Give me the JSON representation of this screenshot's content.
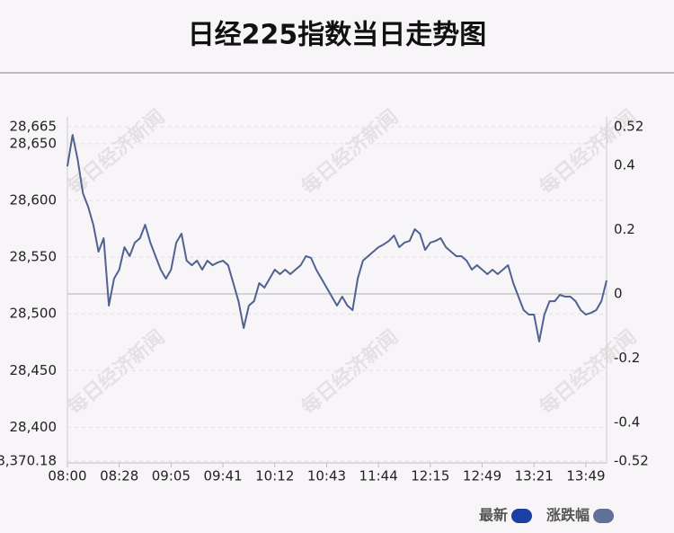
{
  "chart_data": {
    "type": "line",
    "title": "日经225指数当日走势图",
    "watermark": "每日经济新闻",
    "xlim": [
      0,
      104
    ],
    "xticks": [
      {
        "value": 0,
        "label": "08:00"
      },
      {
        "value": 10,
        "label": "08:28"
      },
      {
        "value": 20,
        "label": "09:05"
      },
      {
        "value": 30,
        "label": "09:41"
      },
      {
        "value": 40,
        "label": "10:12"
      },
      {
        "value": 50,
        "label": "10:43"
      },
      {
        "value": 60,
        "label": "11:44"
      },
      {
        "value": 70,
        "label": "12:15"
      },
      {
        "value": 80,
        "label": "12:49"
      },
      {
        "value": 90,
        "label": "13:21"
      },
      {
        "value": 100,
        "label": "13:49"
      }
    ],
    "ylim": [
      28370.18,
      28665
    ],
    "yticks": [
      {
        "value": 28665,
        "label": "28,665"
      },
      {
        "value": 28650,
        "label": "28,650"
      },
      {
        "value": 28600,
        "label": "28,600"
      },
      {
        "value": 28550,
        "label": "28,550"
      },
      {
        "value": 28500,
        "label": "28,500"
      },
      {
        "value": 28450,
        "label": "28,450"
      },
      {
        "value": 28400,
        "label": "28,400"
      },
      {
        "value": 28370.18,
        "label": "28,370.18"
      }
    ],
    "y2lim": [
      -0.52,
      0.52
    ],
    "y2ticks": [
      0.52,
      0.4,
      0.2,
      0,
      -0.2,
      -0.4,
      -0.52
    ],
    "grid": true,
    "series": [
      {
        "name": "最新",
        "color": "#4f6290",
        "values": [
          28630.1,
          28657.8,
          28635.7,
          28606.3,
          28594.5,
          28578.6,
          28554.8,
          28566.7,
          28507.3,
          28531.1,
          28539.0,
          28558.8,
          28550.9,
          28562.8,
          28566.7,
          28578.6,
          28562.8,
          28550.9,
          28539.0,
          28531.1,
          28539.0,
          28562.8,
          28570.7,
          28546.9,
          28542.9,
          28546.9,
          28539.0,
          28546.9,
          28542.9,
          28545.3,
          28546.9,
          28542.9,
          28527.1,
          28511.2,
          28487.5,
          28507.3,
          28511.2,
          28527.1,
          28523.1,
          28531.1,
          28539.0,
          28535.0,
          28539.0,
          28535.0,
          28539.0,
          28542.9,
          28550.9,
          28549.3,
          28539.0,
          28531.1,
          28523.1,
          28515.2,
          28507.3,
          28515.2,
          28507.3,
          28503.3,
          28531.1,
          28546.9,
          28550.9,
          28554.8,
          28558.8,
          28561.2,
          28564.3,
          28569.1,
          28558.8,
          28562.8,
          28564.3,
          28574.6,
          28570.7,
          28556.4,
          28562.8,
          28564.3,
          28566.7,
          28558.8,
          28554.8,
          28550.9,
          28550.9,
          28546.9,
          28539.0,
          28542.9,
          28539.0,
          28535.0,
          28539.0,
          28535.0,
          28539.0,
          28542.9,
          28527.1,
          28515.2,
          28503.3,
          28499.4,
          28499.4,
          28475.6,
          28499.4,
          28511.2,
          28511.2,
          28516.8,
          28515.2,
          28515.2,
          28511.2,
          28503.3,
          28499.4,
          28500.9,
          28503.3,
          28511.2,
          28529.5
        ]
      }
    ],
    "legend": [
      {
        "name": "最新",
        "color": "#1c3fa4"
      },
      {
        "name": "涨跌幅",
        "color": "#5f7199"
      }
    ]
  }
}
